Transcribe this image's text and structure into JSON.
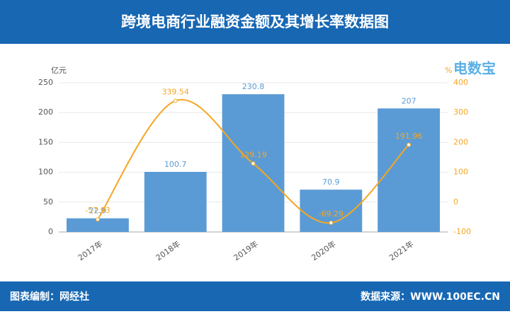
{
  "header": {
    "title": "跨境电商行业融资金额及其增长率数据图"
  },
  "logo": "电数宝",
  "chart_data": {
    "type": "bar-line",
    "y_label": "亿元",
    "y2_label": "%",
    "categories": [
      "2017年",
      "2018年",
      "2019年",
      "2020年",
      "2021年"
    ],
    "series": [
      {
        "name": "融资金额",
        "type": "bar",
        "color": "#5b9bd5",
        "values": [
          22.9,
          100.7,
          230.8,
          70.9,
          207
        ]
      },
      {
        "name": "增长率",
        "type": "line",
        "axis": "y2",
        "color": "#f5a623",
        "values": [
          -57.93,
          339.54,
          129.19,
          -69.29,
          191.96
        ]
      }
    ],
    "ylim": [
      0,
      250
    ],
    "yticks": [
      0,
      50,
      100,
      150,
      200,
      250
    ],
    "y2lim": [
      -100,
      400
    ],
    "y2ticks": [
      -100,
      0,
      100,
      200,
      300,
      400
    ],
    "grid": true
  },
  "footer": {
    "left": "图表编制：网经社",
    "right": "数据来源：WWW.100EC.CN"
  }
}
